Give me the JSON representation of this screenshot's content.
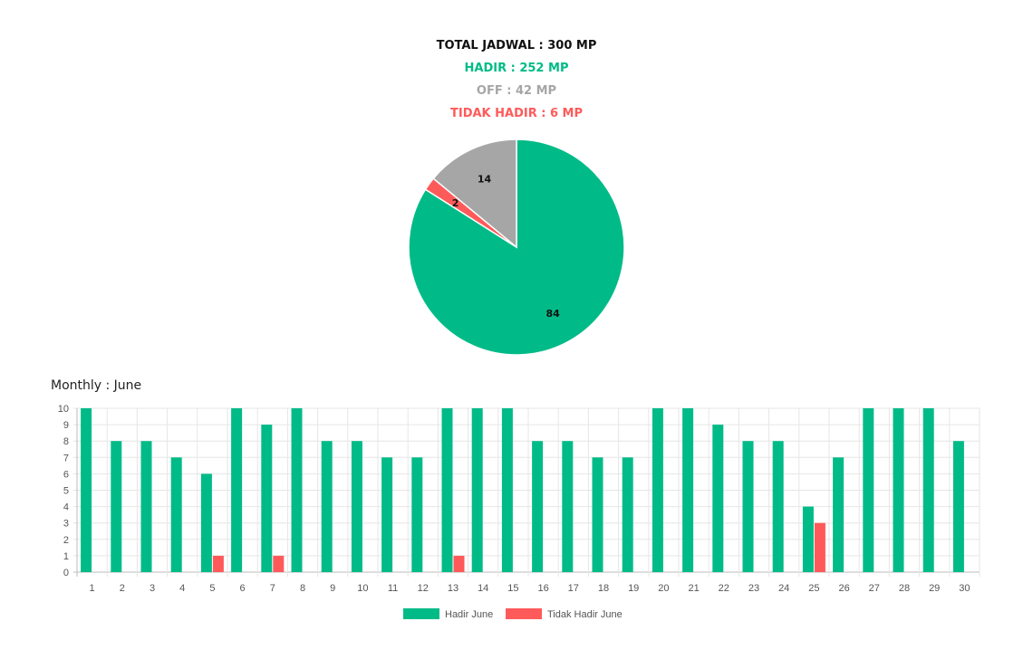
{
  "summary": {
    "total": "TOTAL JADWAL : 300 MP",
    "hadir": "HADIR : 252 MP",
    "off": "OFF : 42 MP",
    "tidak_hadir": "TIDAK HADIR : 6 MP"
  },
  "colors": {
    "hadir": "#00bb87",
    "off": "#a6a6a6",
    "tidak_hadir": "#ff5a5a"
  },
  "monthly": {
    "title": "Monthly : June"
  },
  "chart_data": [
    {
      "type": "pie",
      "slices": [
        {
          "label": "84",
          "value": 84,
          "color": "#00bb87"
        },
        {
          "label": "2",
          "value": 2,
          "color": "#ff5a5a"
        },
        {
          "label": "14",
          "value": 14,
          "color": "#a6a6a6"
        }
      ],
      "start_angle_deg": 0,
      "direction": "clockwise"
    },
    {
      "type": "bar",
      "title": "Monthly : June",
      "categories": [
        "1",
        "2",
        "3",
        "4",
        "5",
        "6",
        "7",
        "8",
        "9",
        "10",
        "11",
        "12",
        "13",
        "14",
        "15",
        "16",
        "17",
        "18",
        "19",
        "20",
        "21",
        "22",
        "23",
        "24",
        "25",
        "26",
        "27",
        "28",
        "29",
        "30"
      ],
      "series": [
        {
          "name": "Hadir June",
          "color": "#00bb87",
          "values": [
            10,
            8,
            8,
            7,
            6,
            10,
            9,
            10,
            8,
            8,
            7,
            7,
            10,
            10,
            10,
            8,
            8,
            7,
            7,
            10,
            10,
            9,
            8,
            8,
            4,
            7,
            10,
            10,
            10,
            8
          ]
        },
        {
          "name": "Tidak Hadir June",
          "color": "#ff5a5a",
          "values": [
            0,
            0,
            0,
            0,
            1,
            0,
            1,
            0,
            0,
            0,
            0,
            0,
            1,
            0,
            0,
            0,
            0,
            0,
            0,
            0,
            0,
            0,
            0,
            0,
            3,
            0,
            0,
            0,
            0,
            0
          ]
        }
      ],
      "ylim": [
        0,
        10
      ],
      "yticks": [
        0,
        1,
        2,
        3,
        4,
        5,
        6,
        7,
        8,
        9,
        10
      ],
      "grid": true,
      "legend": "bottom"
    }
  ]
}
